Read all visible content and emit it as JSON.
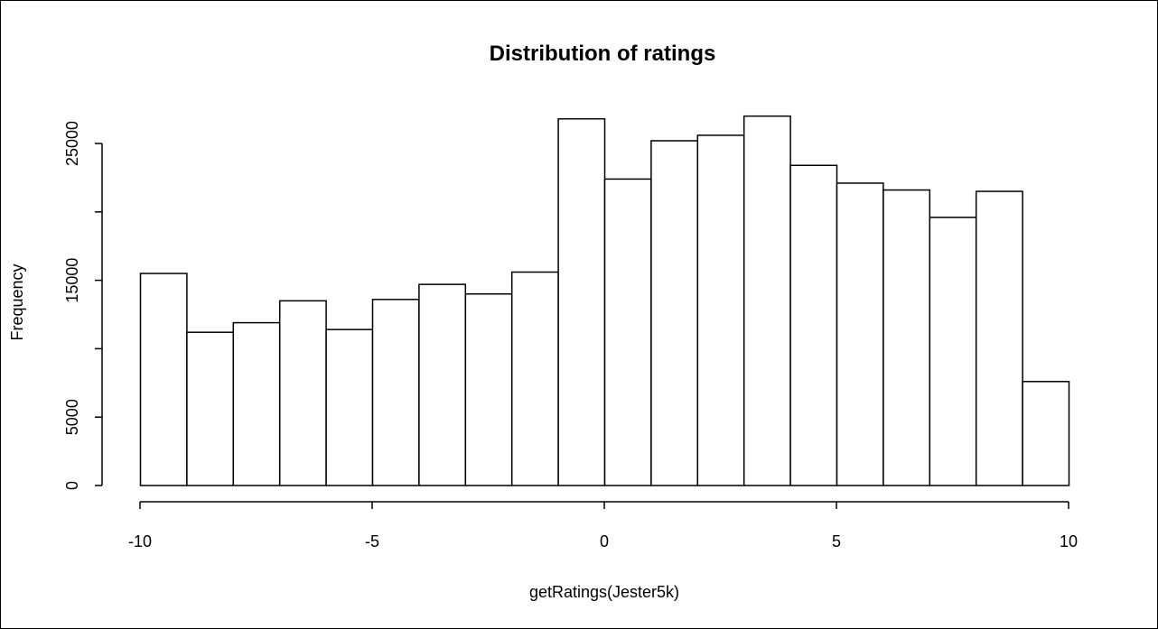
{
  "chart_data": {
    "type": "bar",
    "title": "Distribution of ratings",
    "xlabel": "getRatings(Jester5k)",
    "ylabel": "Frequency",
    "xlim": [
      -10,
      10
    ],
    "ylim": [
      0,
      27000
    ],
    "x_ticks": [
      -10,
      -5,
      0,
      5,
      10
    ],
    "y_ticks": [
      0,
      5000,
      15000,
      25000
    ],
    "y_tick_labels": [
      "0",
      "5000",
      "15000",
      "25000"
    ],
    "bin_width": 1,
    "bins": [
      {
        "x0": -10,
        "x1": -9,
        "count": 15500
      },
      {
        "x0": -9,
        "x1": -8,
        "count": 11200
      },
      {
        "x0": -8,
        "x1": -7,
        "count": 11900
      },
      {
        "x0": -7,
        "x1": -6,
        "count": 13500
      },
      {
        "x0": -6,
        "x1": -5,
        "count": 11400
      },
      {
        "x0": -5,
        "x1": -4,
        "count": 13600
      },
      {
        "x0": -4,
        "x1": -3,
        "count": 14700
      },
      {
        "x0": -3,
        "x1": -2,
        "count": 14000
      },
      {
        "x0": -2,
        "x1": -1,
        "count": 15600
      },
      {
        "x0": -1,
        "x1": 0,
        "count": 26800
      },
      {
        "x0": 0,
        "x1": 1,
        "count": 22400
      },
      {
        "x0": 1,
        "x1": 2,
        "count": 25200
      },
      {
        "x0": 2,
        "x1": 3,
        "count": 25600
      },
      {
        "x0": 3,
        "x1": 4,
        "count": 27000
      },
      {
        "x0": 4,
        "x1": 5,
        "count": 23400
      },
      {
        "x0": 5,
        "x1": 6,
        "count": 22100
      },
      {
        "x0": 6,
        "x1": 7,
        "count": 21600
      },
      {
        "x0": 7,
        "x1": 8,
        "count": 19600
      },
      {
        "x0": 8,
        "x1": 9,
        "count": 21500
      },
      {
        "x0": 9,
        "x1": 10,
        "count": 7600
      }
    ],
    "bar_fill": "#ffffff",
    "bar_stroke": "#000000",
    "grid": false,
    "legend": "none"
  }
}
